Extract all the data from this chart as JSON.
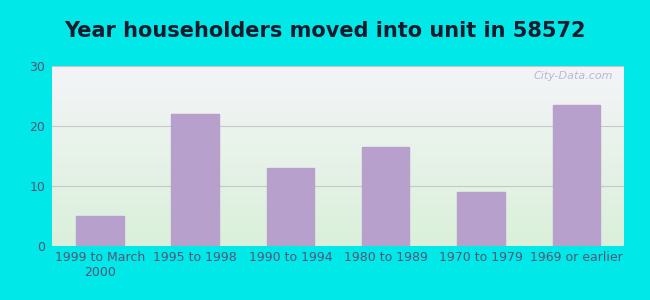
{
  "title": "Year householders moved into unit in 58572",
  "categories": [
    "1999 to March\n2000",
    "1995 to 1998",
    "1990 to 1994",
    "1980 to 1989",
    "1970 to 1979",
    "1969 or earlier"
  ],
  "values": [
    5.0,
    22.0,
    13.0,
    16.5,
    9.0,
    23.5
  ],
  "bar_color": "#b8a0cc",
  "bar_edge_color": "#b8a0cc",
  "ylim": [
    0,
    30
  ],
  "yticks": [
    0,
    10,
    20,
    30
  ],
  "background_outer": "#00e8e8",
  "background_inner_top": "#f4f4f8",
  "background_inner_bottom": "#daf0da",
  "grid_color": "#c8c8c8",
  "title_fontsize": 15,
  "tick_fontsize": 9,
  "title_color": "#1a1a2e",
  "tick_color": "#555577",
  "watermark": "City-Data.com",
  "watermark_color": "#aaaacc",
  "bar_width": 0.5
}
